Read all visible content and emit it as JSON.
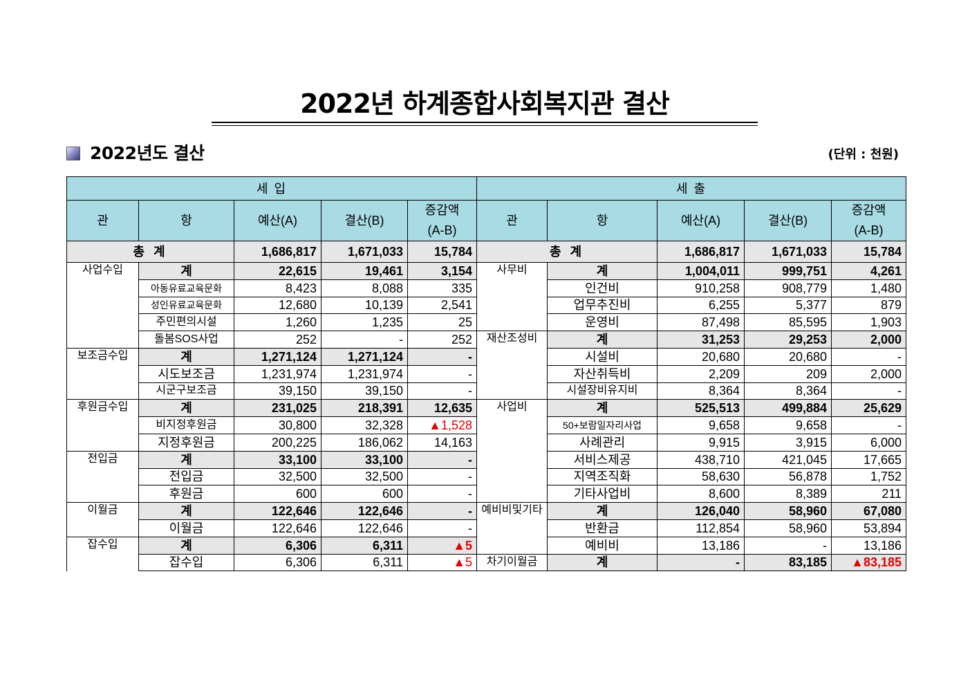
{
  "title": "2022년 하계종합사회복지관 결산",
  "section": {
    "title": "2022년도 결산",
    "unit": "(단위 : 천원)"
  },
  "revenue": {
    "label": "세 입",
    "headers": {
      "gwan": "관",
      "hang": "항",
      "budget": "예산(A)",
      "settlement": "결산(B)",
      "diff1": "증감액",
      "diff2": "(A-B)"
    },
    "total": {
      "label": "총 계",
      "budget": "1,686,817",
      "settlement": "1,671,033",
      "diff": "15,784"
    },
    "groups": [
      {
        "name": "사업수입",
        "subtotal": {
          "label": "계",
          "budget": "22,615",
          "settlement": "19,461",
          "diff": "3,154"
        },
        "items": [
          {
            "name": "아동유료교육문화",
            "budget": "8,423",
            "settlement": "8,088",
            "diff": "335"
          },
          {
            "name": "성인유료교육문화",
            "budget": "12,680",
            "settlement": "10,139",
            "diff": "2,541"
          },
          {
            "name": "주민편의시설",
            "budget": "1,260",
            "settlement": "1,235",
            "diff": "25"
          },
          {
            "name": "돌봄SOS사업",
            "budget": "252",
            "settlement": "-",
            "diff": "252"
          }
        ]
      },
      {
        "name": "보조금수입",
        "subtotal": {
          "label": "계",
          "budget": "1,271,124",
          "settlement": "1,271,124",
          "diff": "-"
        },
        "items": [
          {
            "name": "시도보조금",
            "budget": "1,231,974",
            "settlement": "1,231,974",
            "diff": "-"
          },
          {
            "name": "시군구보조금",
            "budget": "39,150",
            "settlement": "39,150",
            "diff": "-"
          }
        ]
      },
      {
        "name": "후원금수입",
        "subtotal": {
          "label": "계",
          "budget": "231,025",
          "settlement": "218,391",
          "diff": "12,635"
        },
        "items": [
          {
            "name": "비지정후원금",
            "budget": "30,800",
            "settlement": "32,328",
            "diff": "▲1,528"
          },
          {
            "name": "지정후원금",
            "budget": "200,225",
            "settlement": "186,062",
            "diff": "14,163"
          }
        ]
      },
      {
        "name": "전입금",
        "subtotal": {
          "label": "계",
          "budget": "33,100",
          "settlement": "33,100",
          "diff": "-"
        },
        "items": [
          {
            "name": "전입금",
            "budget": "32,500",
            "settlement": "32,500",
            "diff": "-"
          },
          {
            "name": "후원금",
            "budget": "600",
            "settlement": "600",
            "diff": "-"
          }
        ]
      },
      {
        "name": "이월금",
        "subtotal": {
          "label": "계",
          "budget": "122,646",
          "settlement": "122,646",
          "diff": "-"
        },
        "items": [
          {
            "name": "이월금",
            "budget": "122,646",
            "settlement": "122,646",
            "diff": "-"
          }
        ]
      },
      {
        "name": "잡수입",
        "subtotal": {
          "label": "계",
          "budget": "6,306",
          "settlement": "6,311",
          "diff": "▲5"
        },
        "items": [
          {
            "name": "잡수입",
            "budget": "6,306",
            "settlement": "6,311",
            "diff": "▲5"
          }
        ]
      }
    ]
  },
  "expenditure": {
    "label": "세 출",
    "headers": {
      "gwan": "관",
      "hang": "항",
      "budget": "예산(A)",
      "settlement": "결산(B)",
      "diff1": "증감액",
      "diff2": "(A-B)"
    },
    "total": {
      "label": "총 계",
      "budget": "1,686,817",
      "settlement": "1,671,033",
      "diff": "15,784"
    },
    "groups": [
      {
        "name": "사무비",
        "subtotal": {
          "label": "계",
          "budget": "1,004,011",
          "settlement": "999,751",
          "diff": "4,261"
        },
        "items": [
          {
            "name": "인건비",
            "budget": "910,258",
            "settlement": "908,779",
            "diff": "1,480"
          },
          {
            "name": "업무추진비",
            "budget": "6,255",
            "settlement": "5,377",
            "diff": "879"
          },
          {
            "name": "운영비",
            "budget": "87,498",
            "settlement": "85,595",
            "diff": "1,903"
          }
        ]
      },
      {
        "name": "재산조성비",
        "subtotal": {
          "label": "계",
          "budget": "31,253",
          "settlement": "29,253",
          "diff": "2,000"
        },
        "items": [
          {
            "name": "시설비",
            "budget": "20,680",
            "settlement": "20,680",
            "diff": "-"
          },
          {
            "name": "자산취득비",
            "budget": "2,209",
            "settlement": "209",
            "diff": "2,000"
          },
          {
            "name": "시설장비유지비",
            "budget": "8,364",
            "settlement": "8,364",
            "diff": "-"
          }
        ]
      },
      {
        "name": "사업비",
        "subtotal": {
          "label": "계",
          "budget": "525,513",
          "settlement": "499,884",
          "diff": "25,629"
        },
        "items": [
          {
            "name": "50+보람일자리사업",
            "budget": "9,658",
            "settlement": "9,658",
            "diff": "-"
          },
          {
            "name": "사례관리",
            "budget": "9,915",
            "settlement": "3,915",
            "diff": "6,000"
          },
          {
            "name": "서비스제공",
            "budget": "438,710",
            "settlement": "421,045",
            "diff": "17,665"
          },
          {
            "name": "지역조직화",
            "budget": "58,630",
            "settlement": "56,878",
            "diff": "1,752"
          },
          {
            "name": "기타사업비",
            "budget": "8,600",
            "settlement": "8,389",
            "diff": "211"
          }
        ]
      },
      {
        "name": "예비비및기타",
        "subtotal": {
          "label": "계",
          "budget": "126,040",
          "settlement": "58,960",
          "diff": "67,080"
        },
        "items": [
          {
            "name": "반환금",
            "budget": "112,854",
            "settlement": "58,960",
            "diff": "53,894"
          },
          {
            "name": "예비비",
            "budget": "13,186",
            "settlement": "-",
            "diff": "13,186"
          }
        ]
      },
      {
        "name": "차기이월금",
        "subtotal": {
          "label": "계",
          "budget": "-",
          "settlement": "83,185",
          "diff": "▲83,185"
        },
        "items": []
      }
    ]
  },
  "colors": {
    "header_bg": "#a8dbe3",
    "subtotal_bg": "#e6e6e6",
    "negative": "#e00000"
  }
}
